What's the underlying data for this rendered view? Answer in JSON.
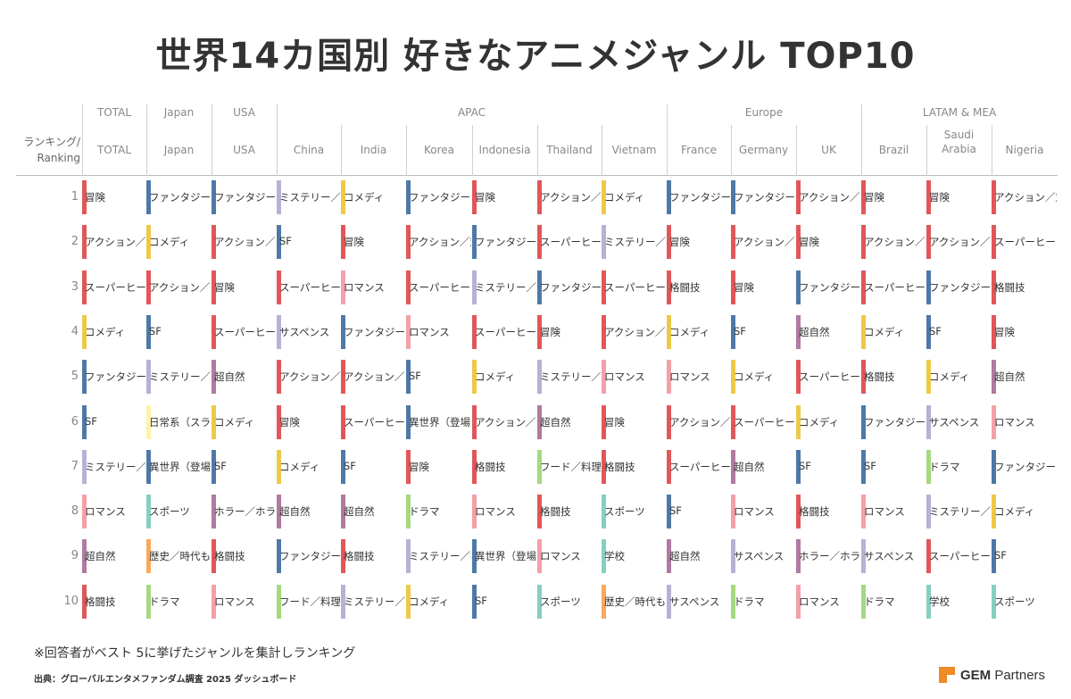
{
  "title": "世界14カ国別 好きなアニメジャンル TOP10",
  "header": {
    "ranking_label": "ランキング/\nRanking"
  },
  "chart_data": {
    "type": "table",
    "regions": [
      "TOTAL",
      "Japan",
      "USA",
      "APAC",
      "Europe",
      "LATAM & MEA"
    ],
    "countries": [
      "TOTAL",
      "Japan",
      "USA",
      "China",
      "India",
      "Korea",
      "Indonesia",
      "Thailand",
      "Vietnam",
      "France",
      "Germany",
      "UK",
      "Brazil",
      "Saudi Arabia",
      "Nigeria"
    ],
    "country_region": [
      "TOTAL",
      "Japan",
      "USA",
      "APAC",
      "APAC",
      "APAC",
      "APAC",
      "APAC",
      "APAC",
      "Europe",
      "Europe",
      "Europe",
      "LATAM & MEA",
      "LATAM & MEA",
      "LATAM & MEA"
    ],
    "ranks": [
      "1",
      "2",
      "3",
      "4",
      "5",
      "6",
      "7",
      "8",
      "9",
      "10"
    ],
    "genre_colors": {
      "冒険": "#e15759",
      "アクション／対戦": "#e15759",
      "スーパーヒーロー": "#e15759",
      "格闘技": "#e15759",
      "ファンタジー": "#4e79a7",
      "SF": "#4e79a7",
      "異世界（登場人物）": "#4e79a7",
      "コメディ": "#edc948",
      "ミステリー／探偵": "#bab0d5",
      "サスペンス": "#bab0d5",
      "ロマンス": "#f4a0a8",
      "超自然": "#b07aa1",
      "ホラー／ホラー": "#b07aa1",
      "日常系（スライス）": "#fff3a8",
      "スポーツ": "#86cfc0",
      "学校": "#86cfc0",
      "歴史／時代もの": "#f9a85c",
      "ドラマ": "#a5d97f",
      "フード／料理": "#a5d97f"
    },
    "rankings": [
      [
        "冒険",
        "アクション／対戦",
        "スーパーヒーロー",
        "コメディ",
        "ファンタジー",
        "SF",
        "ミステリー／探偵",
        "ロマンス",
        "超自然",
        "格闘技"
      ],
      [
        "ファンタジー",
        "コメディ",
        "アクション／対戦",
        "SF",
        "ミステリー／探偵",
        "日常系（スライス）",
        "異世界（登場人物）",
        "スポーツ",
        "歴史／時代もの",
        "ドラマ"
      ],
      [
        "ファンタジー",
        "アクション／対戦",
        "冒険",
        "スーパーヒーロー",
        "超自然",
        "コメディ",
        "SF",
        "ホラー／ホラー",
        "格闘技",
        "ロマンス"
      ],
      [
        "ミステリー／探偵",
        "SF",
        "スーパーヒーロー",
        "サスペンス",
        "アクション／対戦",
        "冒険",
        "コメディ",
        "超自然",
        "ファンタジー",
        "フード／料理"
      ],
      [
        "コメディ",
        "冒険",
        "ロマンス",
        "ファンタジー",
        "アクション／対戦",
        "スーパーヒーロー",
        "SF",
        "超自然",
        "格闘技",
        "ミステリー／探偵"
      ],
      [
        "ファンタジー",
        "アクション／対戦",
        "スーパーヒーロー",
        "ロマンス",
        "SF",
        "異世界（登場人物）",
        "冒険",
        "ドラマ",
        "ミステリー／探偵",
        "コメディ"
      ],
      [
        "冒険",
        "ファンタジー",
        "ミステリー／探偵",
        "スーパーヒーロー",
        "コメディ",
        "アクション／対戦",
        "格闘技",
        "ロマンス",
        "異世界（登場人物）",
        "SF"
      ],
      [
        "アクション／対戦",
        "スーパーヒーロー",
        "ファンタジー",
        "冒険",
        "ミステリー／探偵",
        "超自然",
        "フード／料理",
        "格闘技",
        "ロマンス",
        "スポーツ"
      ],
      [
        "コメディ",
        "ミステリー／探偵",
        "スーパーヒーロー",
        "アクション／対戦",
        "ロマンス",
        "冒険",
        "格闘技",
        "スポーツ",
        "学校",
        "歴史／時代もの"
      ],
      [
        "ファンタジー",
        "冒険",
        "格闘技",
        "コメディ",
        "ロマンス",
        "アクション／対戦",
        "スーパーヒーロー",
        "SF",
        "超自然",
        "サスペンス"
      ],
      [
        "ファンタジー",
        "アクション／対戦",
        "冒険",
        "SF",
        "コメディ",
        "スーパーヒーロー",
        "超自然",
        "ロマンス",
        "サスペンス",
        "ドラマ"
      ],
      [
        "アクション／対戦",
        "冒険",
        "ファンタジー",
        "超自然",
        "スーパーヒーロー",
        "コメディ",
        "SF",
        "格闘技",
        "ホラー／ホラー",
        "ロマンス"
      ],
      [
        "冒険",
        "アクション／対戦",
        "スーパーヒーロー",
        "コメディ",
        "格闘技",
        "ファンタジー",
        "SF",
        "ロマンス",
        "サスペンス",
        "ドラマ"
      ],
      [
        "冒険",
        "アクション／対戦",
        "ファンタジー",
        "SF",
        "コメディ",
        "サスペンス",
        "ドラマ",
        "ミステリー／探偵",
        "スーパーヒーロー",
        "学校"
      ],
      [
        "アクション／対戦",
        "スーパーヒーロー",
        "格闘技",
        "冒険",
        "超自然",
        "ロマンス",
        "ファンタジー",
        "コメディ",
        "SF",
        "スポーツ"
      ]
    ]
  },
  "footer": {
    "note": "※回答者がベスト 5に挙げたジャンルを集計しランキング",
    "source": "出典：グローバルエンタメファンダム調査 2025 ダッシュボード",
    "logo_bold": "GEM",
    "logo_rest": " Partners"
  }
}
